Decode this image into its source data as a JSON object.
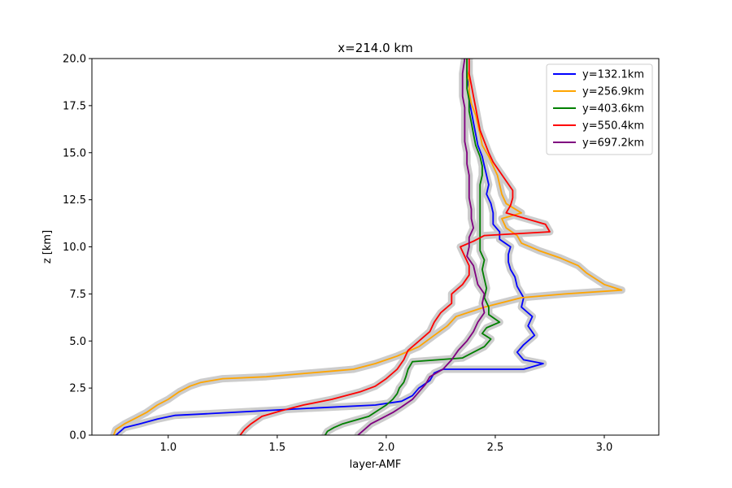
{
  "chart_data": {
    "type": "line",
    "title": "x=214.0 km",
    "xlabel": "layer-AMF",
    "ylabel": "z [km]",
    "xlim": [
      0.65,
      3.25
    ],
    "ylim": [
      0,
      20
    ],
    "xticks": [
      1.0,
      1.5,
      2.0,
      2.5,
      3.0
    ],
    "xtick_labels": [
      "1.0",
      "1.5",
      "2.0",
      "2.5",
      "3.0"
    ],
    "yticks": [
      0,
      2.5,
      5,
      7.5,
      10,
      12.5,
      15,
      17.5,
      20
    ],
    "ytick_labels": [
      "0.0",
      "2.5",
      "5.0",
      "7.5",
      "10.0",
      "12.5",
      "15.0",
      "17.5",
      "20.0"
    ],
    "legend_position": "top-right",
    "uncertainty_band_color": "#cccccc",
    "series": [
      {
        "name": "y=132.1km",
        "color": "#0000ff",
        "points": [
          [
            0.76,
            0
          ],
          [
            0.78,
            0.2
          ],
          [
            0.8,
            0.4
          ],
          [
            0.87,
            0.6
          ],
          [
            0.95,
            0.85
          ],
          [
            1.03,
            1.05
          ],
          [
            1.2,
            1.15
          ],
          [
            1.6,
            1.4
          ],
          [
            1.95,
            1.6
          ],
          [
            2.07,
            1.8
          ],
          [
            2.12,
            2.1
          ],
          [
            2.15,
            2.5
          ],
          [
            2.2,
            2.9
          ],
          [
            2.22,
            3.3
          ],
          [
            2.26,
            3.5
          ],
          [
            2.63,
            3.5
          ],
          [
            2.72,
            3.8
          ],
          [
            2.63,
            4.0
          ],
          [
            2.6,
            4.4
          ],
          [
            2.63,
            4.8
          ],
          [
            2.68,
            5.3
          ],
          [
            2.65,
            5.8
          ],
          [
            2.67,
            6.3
          ],
          [
            2.62,
            6.8
          ],
          [
            2.63,
            7.3
          ],
          [
            2.6,
            7.9
          ],
          [
            2.59,
            8.4
          ],
          [
            2.57,
            8.8
          ],
          [
            2.56,
            9.2
          ],
          [
            2.56,
            9.6
          ],
          [
            2.57,
            10.0
          ],
          [
            2.52,
            10.4
          ],
          [
            2.52,
            10.8
          ],
          [
            2.49,
            11.2
          ],
          [
            2.49,
            11.8
          ],
          [
            2.48,
            12.3
          ],
          [
            2.46,
            12.8
          ],
          [
            2.47,
            13.3
          ],
          [
            2.46,
            13.8
          ],
          [
            2.45,
            14.3
          ],
          [
            2.44,
            14.8
          ],
          [
            2.42,
            15.4
          ],
          [
            2.41,
            16.0
          ],
          [
            2.4,
            16.6
          ],
          [
            2.39,
            17.2
          ],
          [
            2.38,
            17.8
          ],
          [
            2.38,
            18.4
          ],
          [
            2.37,
            19.0
          ],
          [
            2.37,
            19.6
          ],
          [
            2.37,
            20
          ]
        ]
      },
      {
        "name": "y=256.9km",
        "color": "#ffa500",
        "points": [
          [
            0.75,
            0
          ],
          [
            0.76,
            0.3
          ],
          [
            0.8,
            0.6
          ],
          [
            0.85,
            0.9
          ],
          [
            0.9,
            1.2
          ],
          [
            0.95,
            1.6
          ],
          [
            1.0,
            1.9
          ],
          [
            1.05,
            2.3
          ],
          [
            1.1,
            2.6
          ],
          [
            1.15,
            2.8
          ],
          [
            1.25,
            3.0
          ],
          [
            1.45,
            3.1
          ],
          [
            1.75,
            3.4
          ],
          [
            1.85,
            3.5
          ],
          [
            1.95,
            3.8
          ],
          [
            2.05,
            4.2
          ],
          [
            2.15,
            4.7
          ],
          [
            2.22,
            5.3
          ],
          [
            2.28,
            5.8
          ],
          [
            2.32,
            6.3
          ],
          [
            2.45,
            6.8
          ],
          [
            2.62,
            7.3
          ],
          [
            2.82,
            7.5
          ],
          [
            3.08,
            7.7
          ],
          [
            3.0,
            8.0
          ],
          [
            2.96,
            8.3
          ],
          [
            2.92,
            8.6
          ],
          [
            2.88,
            9.0
          ],
          [
            2.8,
            9.4
          ],
          [
            2.7,
            9.8
          ],
          [
            2.62,
            10.2
          ],
          [
            2.6,
            10.6
          ],
          [
            2.55,
            11.0
          ],
          [
            2.53,
            11.5
          ],
          [
            2.62,
            11.8
          ],
          [
            2.55,
            12.3
          ],
          [
            2.53,
            12.8
          ],
          [
            2.52,
            13.3
          ],
          [
            2.51,
            13.8
          ],
          [
            2.49,
            14.3
          ],
          [
            2.47,
            14.8
          ],
          [
            2.44,
            15.4
          ],
          [
            2.43,
            16.0
          ],
          [
            2.42,
            16.5
          ],
          [
            2.41,
            17.0
          ],
          [
            2.39,
            17.6
          ],
          [
            2.38,
            18.2
          ],
          [
            2.38,
            18.8
          ],
          [
            2.37,
            19.4
          ],
          [
            2.37,
            20
          ]
        ]
      },
      {
        "name": "y=403.6km",
        "color": "#008000",
        "points": [
          [
            1.72,
            0
          ],
          [
            1.73,
            0.2
          ],
          [
            1.76,
            0.4
          ],
          [
            1.8,
            0.6
          ],
          [
            1.86,
            0.8
          ],
          [
            1.92,
            1.0
          ],
          [
            1.96,
            1.3
          ],
          [
            2.0,
            1.6
          ],
          [
            2.03,
            1.9
          ],
          [
            2.05,
            2.2
          ],
          [
            2.06,
            2.5
          ],
          [
            2.08,
            2.8
          ],
          [
            2.09,
            3.1
          ],
          [
            2.1,
            3.5
          ],
          [
            2.12,
            3.9
          ],
          [
            2.35,
            4.1
          ],
          [
            2.4,
            4.4
          ],
          [
            2.45,
            4.7
          ],
          [
            2.48,
            5.1
          ],
          [
            2.44,
            5.4
          ],
          [
            2.46,
            5.7
          ],
          [
            2.52,
            6.0
          ],
          [
            2.47,
            6.4
          ],
          [
            2.47,
            6.8
          ],
          [
            2.45,
            7.3
          ],
          [
            2.46,
            7.8
          ],
          [
            2.45,
            8.3
          ],
          [
            2.44,
            8.8
          ],
          [
            2.45,
            9.3
          ],
          [
            2.43,
            9.8
          ],
          [
            2.43,
            10.3
          ],
          [
            2.43,
            10.8
          ],
          [
            2.43,
            11.3
          ],
          [
            2.43,
            11.8
          ],
          [
            2.43,
            12.3
          ],
          [
            2.43,
            12.8
          ],
          [
            2.43,
            13.3
          ],
          [
            2.44,
            13.8
          ],
          [
            2.44,
            14.3
          ],
          [
            2.43,
            14.8
          ],
          [
            2.41,
            15.4
          ],
          [
            2.4,
            16.0
          ],
          [
            2.39,
            16.6
          ],
          [
            2.38,
            17.2
          ],
          [
            2.38,
            17.8
          ],
          [
            2.37,
            18.4
          ],
          [
            2.37,
            19.0
          ],
          [
            2.37,
            19.6
          ],
          [
            2.37,
            20
          ]
        ]
      },
      {
        "name": "y=550.4km",
        "color": "#ff0000",
        "points": [
          [
            1.33,
            0
          ],
          [
            1.35,
            0.3
          ],
          [
            1.38,
            0.6
          ],
          [
            1.43,
            1.0
          ],
          [
            1.52,
            1.3
          ],
          [
            1.62,
            1.6
          ],
          [
            1.75,
            1.9
          ],
          [
            1.88,
            2.3
          ],
          [
            1.95,
            2.6
          ],
          [
            2.0,
            3.0
          ],
          [
            2.05,
            3.5
          ],
          [
            2.08,
            4.0
          ],
          [
            2.1,
            4.5
          ],
          [
            2.15,
            5.0
          ],
          [
            2.2,
            5.5
          ],
          [
            2.22,
            6.0
          ],
          [
            2.25,
            6.5
          ],
          [
            2.3,
            7.0
          ],
          [
            2.3,
            7.5
          ],
          [
            2.35,
            8.0
          ],
          [
            2.38,
            8.5
          ],
          [
            2.38,
            9.0
          ],
          [
            2.36,
            9.5
          ],
          [
            2.34,
            10.0
          ],
          [
            2.4,
            10.3
          ],
          [
            2.45,
            10.6
          ],
          [
            2.75,
            10.8
          ],
          [
            2.73,
            11.2
          ],
          [
            2.55,
            11.8
          ],
          [
            2.57,
            12.2
          ],
          [
            2.58,
            12.6
          ],
          [
            2.58,
            13.0
          ],
          [
            2.55,
            13.5
          ],
          [
            2.52,
            14.0
          ],
          [
            2.49,
            14.5
          ],
          [
            2.47,
            15.0
          ],
          [
            2.45,
            15.6
          ],
          [
            2.43,
            16.2
          ],
          [
            2.42,
            16.8
          ],
          [
            2.41,
            17.4
          ],
          [
            2.4,
            18.0
          ],
          [
            2.39,
            18.6
          ],
          [
            2.38,
            19.2
          ],
          [
            2.38,
            20
          ]
        ]
      },
      {
        "name": "y=697.2km",
        "color": "#800080",
        "points": [
          [
            1.87,
            0
          ],
          [
            1.9,
            0.3
          ],
          [
            1.93,
            0.6
          ],
          [
            1.98,
            0.9
          ],
          [
            2.03,
            1.2
          ],
          [
            2.07,
            1.5
          ],
          [
            2.12,
            1.9
          ],
          [
            2.15,
            2.3
          ],
          [
            2.18,
            2.7
          ],
          [
            2.2,
            3.1
          ],
          [
            2.26,
            3.5
          ],
          [
            2.3,
            4.0
          ],
          [
            2.33,
            4.5
          ],
          [
            2.37,
            5.0
          ],
          [
            2.4,
            5.5
          ],
          [
            2.42,
            6.0
          ],
          [
            2.45,
            6.5
          ],
          [
            2.44,
            7.0
          ],
          [
            2.45,
            7.5
          ],
          [
            2.42,
            8.0
          ],
          [
            2.41,
            8.5
          ],
          [
            2.4,
            9.0
          ],
          [
            2.37,
            9.5
          ],
          [
            2.38,
            10.0
          ],
          [
            2.38,
            10.5
          ],
          [
            2.4,
            11.0
          ],
          [
            2.39,
            11.5
          ],
          [
            2.39,
            12.0
          ],
          [
            2.38,
            12.6
          ],
          [
            2.38,
            13.2
          ],
          [
            2.38,
            13.8
          ],
          [
            2.37,
            14.4
          ],
          [
            2.37,
            15.0
          ],
          [
            2.36,
            15.6
          ],
          [
            2.36,
            16.2
          ],
          [
            2.36,
            16.8
          ],
          [
            2.36,
            17.4
          ],
          [
            2.35,
            18.0
          ],
          [
            2.35,
            18.6
          ],
          [
            2.35,
            19.2
          ],
          [
            2.36,
            20
          ]
        ]
      }
    ]
  }
}
